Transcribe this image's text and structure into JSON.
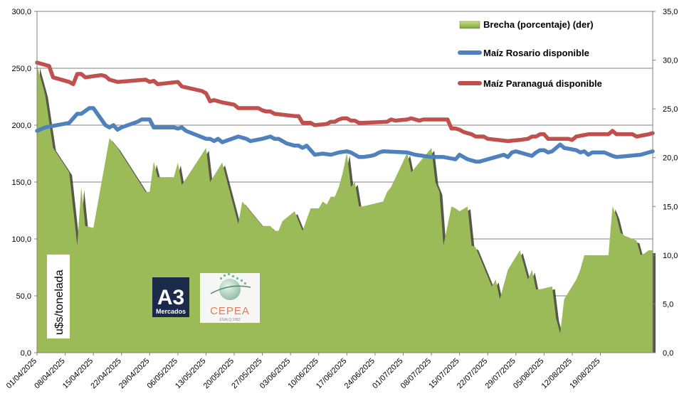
{
  "chart_data": {
    "type": "line",
    "y_left": {
      "ticks": [
        "0,0",
        "50,0",
        "100,0",
        "150,0",
        "200,0",
        "250,0",
        "300,0"
      ],
      "lim": [
        0,
        300
      ]
    },
    "y_right": {
      "ticks": [
        "0,0",
        "5,0",
        "10,0",
        "15,0",
        "20,0",
        "25,0",
        "30,0",
        "35,0"
      ],
      "lim": [
        0,
        35
      ]
    },
    "ylabel": "u$s/tonelada",
    "x_ticks": [
      "01/04/2025",
      "08/04/2025",
      "15/04/2025",
      "22/04/2025",
      "29/04/2025",
      "06/05/2025",
      "13/05/2025",
      "20/05/2025",
      "27/05/2025",
      "03/06/2025",
      "10/06/2025",
      "17/06/2025",
      "24/06/2025",
      "01/07/2025",
      "08/07/2025",
      "15/07/2025",
      "22/07/2025",
      "29/07/2025",
      "05/08/2025",
      "12/08/2025",
      "19/08/2025"
    ],
    "x_days": 147,
    "grid": true,
    "legend_position": "top-right",
    "series": [
      {
        "name": "Brecha (porcentaje) (der)",
        "kind": "area",
        "axis": "right",
        "color": "#9bbb59",
        "points": [
          [
            0,
            29.5
          ],
          [
            2,
            26.5
          ],
          [
            4,
            21
          ],
          [
            8,
            18.5
          ],
          [
            10,
            11
          ],
          [
            11,
            17
          ],
          [
            12,
            13
          ],
          [
            14,
            12.8
          ],
          [
            18,
            22
          ],
          [
            20,
            21
          ],
          [
            27,
            16.5
          ],
          [
            28,
            16.5
          ],
          [
            29,
            19.6
          ],
          [
            30,
            18
          ],
          [
            34,
            18
          ],
          [
            35,
            19.5
          ],
          [
            36,
            17.2
          ],
          [
            42,
            21
          ],
          [
            43,
            17.5
          ],
          [
            46,
            19.5
          ],
          [
            50,
            13.2
          ],
          [
            51,
            15.5
          ],
          [
            56,
            13
          ],
          [
            58,
            13
          ],
          [
            59,
            12.5
          ],
          [
            60,
            12.5
          ],
          [
            61,
            13.5
          ],
          [
            64,
            14.5
          ],
          [
            66,
            12.5
          ],
          [
            68,
            14.8
          ],
          [
            69,
            14.8
          ],
          [
            70,
            14.8
          ],
          [
            71,
            15.5
          ],
          [
            72,
            15.2
          ],
          [
            73,
            16
          ],
          [
            74,
            16
          ],
          [
            75,
            17
          ],
          [
            76,
            18.5
          ],
          [
            77,
            20.5
          ],
          [
            78,
            17
          ],
          [
            79,
            17.5
          ],
          [
            80,
            15
          ],
          [
            81,
            15
          ],
          [
            86,
            15.5
          ],
          [
            87,
            16.5
          ],
          [
            88,
            17
          ],
          [
            92,
            20.5
          ],
          [
            93,
            18.5
          ],
          [
            98,
            21
          ],
          [
            99,
            17.5
          ],
          [
            100,
            16.5
          ],
          [
            101,
            11
          ],
          [
            103,
            15
          ],
          [
            104,
            14.8
          ],
          [
            105,
            14.5
          ],
          [
            107,
            15
          ],
          [
            108,
            11
          ],
          [
            109,
            10.8
          ],
          [
            113,
            6.8
          ],
          [
            114,
            7.5
          ],
          [
            115,
            5.5
          ],
          [
            117,
            8.5
          ],
          [
            120,
            10.5
          ],
          [
            122,
            7.5
          ],
          [
            123,
            8.5
          ],
          [
            124,
            6.5
          ],
          [
            125,
            6.5
          ],
          [
            128,
            6.8
          ],
          [
            129,
            3.5
          ],
          [
            130,
            2
          ],
          [
            131,
            5.5
          ],
          [
            134,
            7.5
          ],
          [
            135,
            8.5
          ],
          [
            136,
            10
          ],
          [
            137,
            10
          ],
          [
            138,
            10
          ],
          [
            142,
            10
          ],
          [
            143,
            15
          ],
          [
            144,
            14
          ],
          [
            145,
            12.3
          ],
          [
            146,
            12
          ],
          [
            149,
            11.5
          ],
          [
            150,
            10
          ],
          [
            151,
            10.2
          ],
          [
            152,
            10.5
          ],
          [
            153,
            10.5
          ]
        ]
      },
      {
        "name": "Maíz Rosario disponible",
        "kind": "line",
        "axis": "left",
        "color": "#4f81bd",
        "points": [
          [
            0,
            195
          ],
          [
            2,
            198
          ],
          [
            8,
            202
          ],
          [
            10,
            210
          ],
          [
            11,
            210
          ],
          [
            13,
            215
          ],
          [
            14,
            215
          ],
          [
            15,
            210
          ],
          [
            17,
            200
          ],
          [
            18,
            198
          ],
          [
            19,
            200
          ],
          [
            20,
            196
          ],
          [
            21,
            198
          ],
          [
            25,
            203
          ],
          [
            26,
            205
          ],
          [
            28,
            205
          ],
          [
            29,
            198
          ],
          [
            30,
            198
          ],
          [
            34,
            198
          ],
          [
            35,
            197
          ],
          [
            36,
            198
          ],
          [
            37,
            195
          ],
          [
            42,
            188
          ],
          [
            43,
            188
          ],
          [
            44,
            186
          ],
          [
            45,
            188
          ],
          [
            46,
            185
          ],
          [
            50,
            190
          ],
          [
            52,
            188
          ],
          [
            53,
            186
          ],
          [
            56,
            188
          ],
          [
            58,
            190
          ],
          [
            59,
            188
          ],
          [
            60,
            188
          ],
          [
            61,
            186
          ],
          [
            62,
            184
          ],
          [
            64,
            182
          ],
          [
            65,
            182
          ],
          [
            66,
            180
          ],
          [
            67,
            182
          ],
          [
            68,
            178
          ],
          [
            69,
            174
          ],
          [
            71,
            175
          ],
          [
            73,
            174
          ],
          [
            74,
            175
          ],
          [
            75,
            176
          ],
          [
            77,
            177
          ],
          [
            78,
            176
          ],
          [
            79,
            174
          ],
          [
            80,
            172
          ],
          [
            81,
            172
          ],
          [
            83,
            173
          ],
          [
            84,
            174
          ],
          [
            85,
            176
          ],
          [
            86,
            177
          ],
          [
            92,
            176
          ],
          [
            94,
            174
          ],
          [
            98,
            172
          ],
          [
            101,
            172
          ],
          [
            104,
            170
          ],
          [
            105,
            174
          ],
          [
            107,
            170
          ],
          [
            109,
            168
          ],
          [
            110,
            168
          ],
          [
            112,
            170
          ],
          [
            114,
            172
          ],
          [
            116,
            174
          ],
          [
            117,
            172
          ],
          [
            118,
            176
          ],
          [
            119,
            177
          ],
          [
            122,
            174
          ],
          [
            123,
            173
          ],
          [
            124,
            176
          ],
          [
            125,
            178
          ],
          [
            126,
            178
          ],
          [
            127,
            176
          ],
          [
            128,
            177
          ],
          [
            130,
            183
          ],
          [
            131,
            180
          ],
          [
            134,
            178
          ],
          [
            135,
            176
          ],
          [
            136,
            177
          ],
          [
            137,
            174
          ],
          [
            138,
            176
          ],
          [
            139,
            176
          ],
          [
            141,
            176
          ],
          [
            143,
            173
          ],
          [
            144,
            172
          ],
          [
            147,
            173
          ],
          [
            150,
            174
          ],
          [
            152,
            176
          ],
          [
            153,
            177
          ]
        ]
      },
      {
        "name": "Maíz Paranaguá disponible",
        "kind": "line",
        "axis": "left",
        "color": "#c0504d",
        "points": [
          [
            0,
            255
          ],
          [
            3,
            252
          ],
          [
            4,
            242
          ],
          [
            8,
            238
          ],
          [
            9,
            236
          ],
          [
            10,
            245
          ],
          [
            11,
            245
          ],
          [
            12,
            242
          ],
          [
            16,
            244
          ],
          [
            17,
            243
          ],
          [
            18,
            240
          ],
          [
            20,
            238
          ],
          [
            27,
            240
          ],
          [
            28,
            238
          ],
          [
            29,
            239
          ],
          [
            30,
            236
          ],
          [
            35,
            238
          ],
          [
            36,
            234
          ],
          [
            41,
            230
          ],
          [
            42,
            228
          ],
          [
            43,
            221
          ],
          [
            44,
            222
          ],
          [
            46,
            220
          ],
          [
            49,
            218
          ],
          [
            50,
            215
          ],
          [
            55,
            215
          ],
          [
            56,
            213
          ],
          [
            57,
            212
          ],
          [
            58,
            212
          ],
          [
            59,
            210
          ],
          [
            64,
            208
          ],
          [
            65,
            208
          ],
          [
            66,
            202
          ],
          [
            68,
            202
          ],
          [
            69,
            200
          ],
          [
            72,
            201
          ],
          [
            73,
            203
          ],
          [
            74,
            203
          ],
          [
            75,
            205
          ],
          [
            76,
            206
          ],
          [
            77,
            206
          ],
          [
            78,
            204
          ],
          [
            79,
            204
          ],
          [
            80,
            202
          ],
          [
            81,
            202
          ],
          [
            87,
            203
          ],
          [
            88,
            205
          ],
          [
            89,
            204
          ],
          [
            92,
            205
          ],
          [
            93,
            206
          ],
          [
            94,
            205
          ],
          [
            95,
            204
          ],
          [
            96,
            205
          ],
          [
            102,
            205
          ],
          [
            103,
            197
          ],
          [
            104,
            197
          ],
          [
            105,
            196
          ],
          [
            106,
            194
          ],
          [
            108,
            192
          ],
          [
            109,
            190
          ],
          [
            110,
            190
          ],
          [
            111,
            190
          ],
          [
            112,
            188
          ],
          [
            117,
            186
          ],
          [
            120,
            187
          ],
          [
            122,
            188
          ],
          [
            123,
            190
          ],
          [
            124,
            190
          ],
          [
            125,
            192
          ],
          [
            126,
            192
          ],
          [
            127,
            188
          ],
          [
            132,
            188
          ],
          [
            133,
            187
          ],
          [
            134,
            190
          ],
          [
            137,
            192
          ],
          [
            138,
            192
          ],
          [
            142,
            192
          ],
          [
            143,
            195
          ],
          [
            144,
            192
          ],
          [
            148,
            192
          ],
          [
            149,
            190
          ],
          [
            152,
            192
          ],
          [
            153,
            193
          ]
        ]
      }
    ]
  },
  "logos": {
    "a3": {
      "big": "A3",
      "small": "Mercados"
    },
    "cepea": {
      "name": "CEPEA",
      "sub": "ESALQ 1982"
    }
  }
}
